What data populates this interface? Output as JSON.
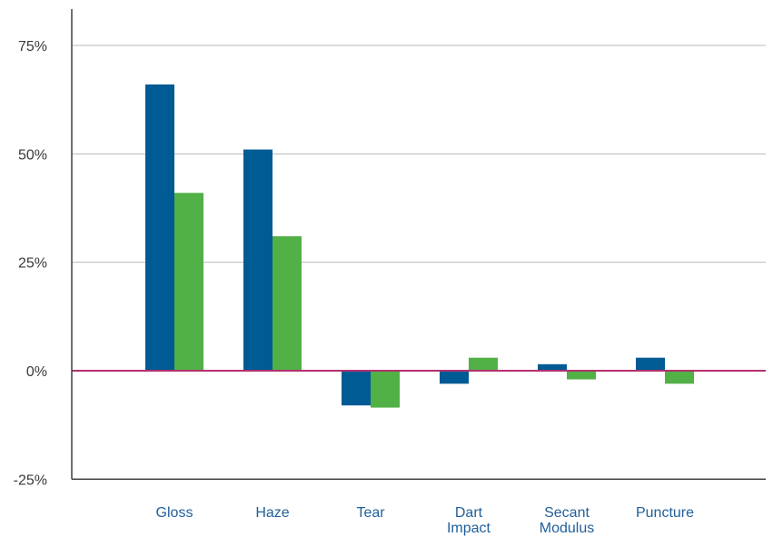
{
  "chart_data": {
    "type": "bar",
    "categories": [
      [
        "Gloss"
      ],
      [
        "Haze"
      ],
      [
        "Tear"
      ],
      [
        "Dart",
        "Impact"
      ],
      [
        "Secant",
        "Modulus"
      ],
      [
        "Puncture"
      ]
    ],
    "series": [
      {
        "values": [
          66,
          51,
          -8,
          -3,
          1.5,
          3
        ],
        "color": "#005a93"
      },
      {
        "values": [
          41,
          31,
          -8.5,
          3,
          -2,
          -3
        ],
        "color": "#51b046"
      }
    ],
    "y_ticks": [
      -25,
      0,
      25,
      50,
      75
    ],
    "y_tick_labels": [
      "-25%",
      "0%",
      "25%",
      "50%",
      "75%"
    ],
    "ylim": [
      -25,
      75
    ],
    "grid": true,
    "zero_line_color": "#b5316e",
    "category_label_color": "#1f5f9a",
    "legend": "none"
  }
}
